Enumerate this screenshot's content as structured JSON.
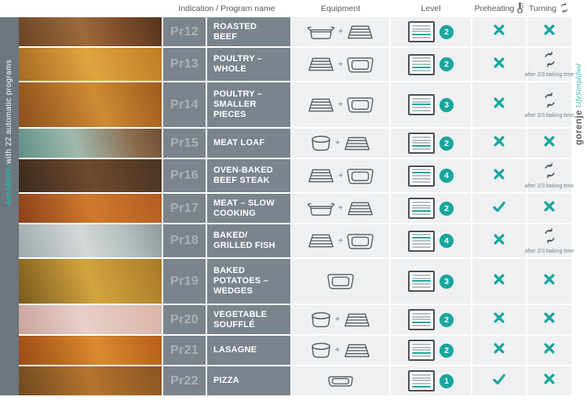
{
  "colors": {
    "accent": "#19a69d",
    "row_bg": "#7b848c",
    "cell_bg": "#eef0f1",
    "strip_bg": "#6e767d"
  },
  "header": {
    "indication": "Indication / Program name",
    "equipment": "Equipment",
    "level": "Level",
    "preheating": "Preheating",
    "turning": "Turning"
  },
  "sidebar": {
    "highlight": "AutoBake",
    "text": " with 22 automatic programs"
  },
  "brand": {
    "name": "gorenje",
    "tagline": " LifeSimplified"
  },
  "turning_note": "after 2/3 baking time",
  "rows": [
    {
      "id": "Pr12",
      "name": "ROASTED\nBEEF",
      "photo": "roasted-beef",
      "equipment": [
        "roasting-pan",
        "wire-rack"
      ],
      "level": 2,
      "preheating": false,
      "turning": "cross"
    },
    {
      "id": "Pr13",
      "name": "POULTRY –\nWHOLE",
      "photo": "poultry-whole",
      "equipment": [
        "wire-rack",
        "baking-dish"
      ],
      "level": 2,
      "preheating": false,
      "turning": "turn"
    },
    {
      "id": "Pr14",
      "name": "POULTRY –\nSMALLER\nPIECES",
      "photo": "poultry-pieces",
      "equipment": [
        "wire-rack",
        "baking-dish"
      ],
      "level": 3,
      "preheating": false,
      "turning": "turn"
    },
    {
      "id": "Pr15",
      "name": "MEAT LOAF",
      "photo": "meat-loaf",
      "equipment": [
        "round-dish",
        "wire-rack"
      ],
      "level": 2,
      "preheating": false,
      "turning": "cross"
    },
    {
      "id": "Pr16",
      "name": "OVEN-BAKED\nBEEF STEAK",
      "photo": "beef-steak",
      "equipment": [
        "wire-rack",
        "baking-dish"
      ],
      "level": 4,
      "preheating": false,
      "turning": "turn"
    },
    {
      "id": "Pr17",
      "name": "MEAT – SLOW\nCOOKING",
      "photo": "slow-cooking",
      "equipment": [
        "roasting-pan",
        "wire-rack"
      ],
      "level": 2,
      "preheating": true,
      "turning": "cross"
    },
    {
      "id": "Pr18",
      "name": "BAKED/\nGRILLED FISH",
      "photo": "fish",
      "equipment": [
        "wire-rack",
        "baking-dish"
      ],
      "level": 4,
      "preheating": false,
      "turning": "turn"
    },
    {
      "id": "Pr19",
      "name": "BAKED\nPOTATOES –\nWEDGES",
      "photo": "potatoes",
      "equipment": [
        "baking-dish"
      ],
      "level": 3,
      "preheating": false,
      "turning": "cross"
    },
    {
      "id": "Pr20",
      "name": "VEGETABLE\nSOUFFLÉ",
      "photo": "souffle",
      "equipment": [
        "round-dish",
        "wire-rack"
      ],
      "level": 2,
      "preheating": false,
      "turning": "cross"
    },
    {
      "id": "Pr21",
      "name": "LASAGNE",
      "photo": "lasagne",
      "equipment": [
        "round-dish",
        "wire-rack"
      ],
      "level": 2,
      "preheating": false,
      "turning": "cross"
    },
    {
      "id": "Pr22",
      "name": "PIZZA",
      "photo": "pizza",
      "equipment": [
        "shallow-dish"
      ],
      "level": 1,
      "preheating": true,
      "turning": "cross"
    }
  ]
}
